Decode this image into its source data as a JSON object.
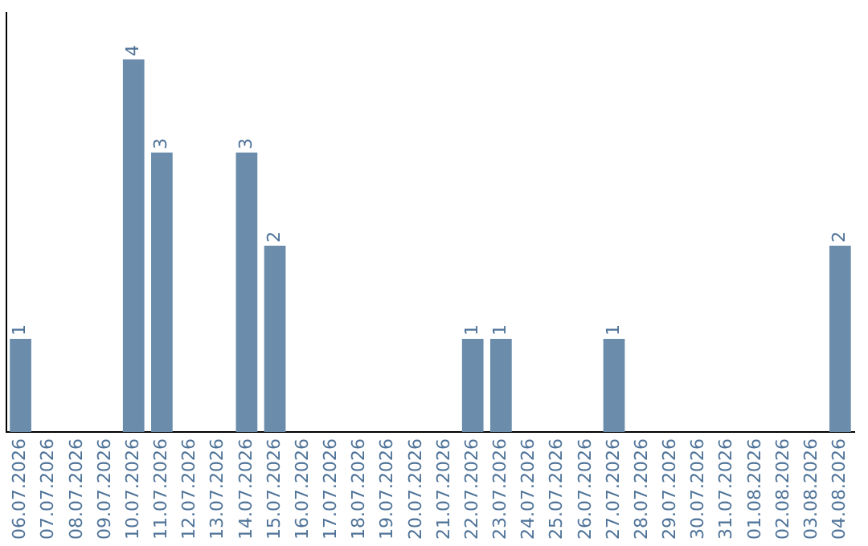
{
  "chart_data": {
    "type": "bar",
    "categories": [
      "06.07.2026",
      "07.07.2026",
      "08.07.2026",
      "09.07.2026",
      "10.07.2026",
      "11.07.2026",
      "12.07.2026",
      "13.07.2026",
      "14.07.2026",
      "15.07.2026",
      "16.07.2026",
      "17.07.2026",
      "18.07.2026",
      "19.07.2026",
      "20.07.2026",
      "21.07.2026",
      "22.07.2026",
      "23.07.2026",
      "24.07.2026",
      "25.07.2026",
      "26.07.2026",
      "27.07.2026",
      "28.07.2026",
      "29.07.2026",
      "30.07.2026",
      "31.07.2026",
      "01.08.2026",
      "02.08.2026",
      "03.08.2026",
      "04.08.2026"
    ],
    "values": [
      1,
      null,
      null,
      null,
      4,
      3,
      null,
      null,
      3,
      2,
      null,
      null,
      null,
      null,
      null,
      null,
      1,
      1,
      null,
      null,
      null,
      1,
      null,
      null,
      null,
      null,
      null,
      null,
      null,
      2
    ],
    "color": "#6b8cab",
    "data_labels": true,
    "tick_labels": "x",
    "grid": false,
    "legend": false
  }
}
